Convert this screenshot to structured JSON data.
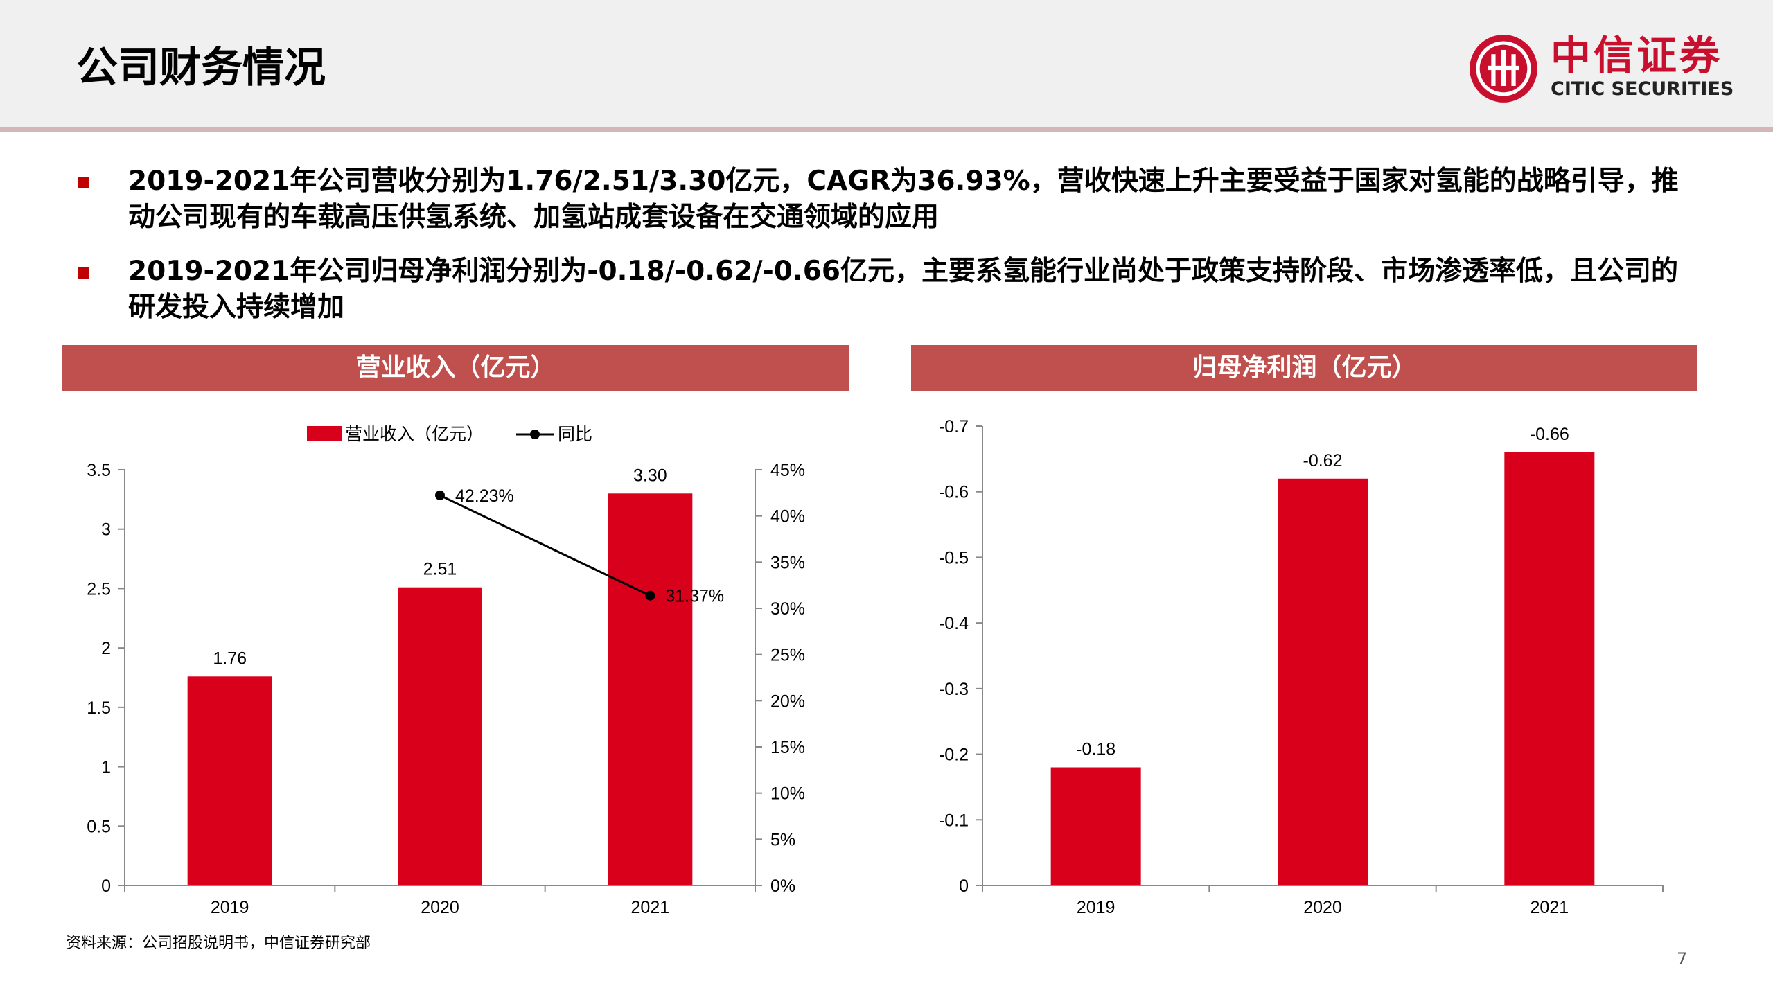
{
  "page": {
    "title": "公司财务情况",
    "page_number": "7",
    "source": "资料来源：公司招股说明书，中信证券研究部"
  },
  "logo": {
    "cn": "中信证券",
    "en": "CITIC SECURITIES",
    "color": "#c8102e"
  },
  "bullets": [
    "2019-2021年公司营收分别为1.76/2.51/3.30亿元，CAGR为36.93%，营收快速上升主要受益于国家对氢能的战略引导，推动公司现有的车载高压供氢系统、加氢站成套设备在交通领域的应用",
    "2019-2021年公司归母净利润分别为-0.18/-0.62/-0.66亿元，主要系氢能行业尚处于政策支持阶段、市场渗透率低，且公司的研发投入持续增加"
  ],
  "panels": {
    "left_title": "营业收入（亿元）",
    "right_title": "归母净利润（亿元）"
  },
  "chart_data": [
    {
      "type": "bar",
      "categories": [
        "2019",
        "2020",
        "2021"
      ],
      "series": [
        {
          "name": "营业收入（亿元）",
          "type": "bar",
          "axis": "left",
          "values": [
            1.76,
            2.51,
            3.3
          ],
          "labels": [
            "1.76",
            "2.51",
            "3.30"
          ],
          "color": "#d9001b"
        },
        {
          "name": "同比",
          "type": "line",
          "axis": "right",
          "values": [
            null,
            42.23,
            31.37
          ],
          "labels": [
            "",
            "42.23%",
            "31.37%"
          ],
          "color": "#000000"
        }
      ],
      "y_left": {
        "min": 0,
        "max": 3.5,
        "ticks": [
          "0",
          "0.5",
          "1",
          "1.5",
          "2",
          "2.5",
          "3",
          "3.5"
        ]
      },
      "y_right": {
        "min": 0,
        "max": 45,
        "ticks": [
          "0%",
          "5%",
          "10%",
          "15%",
          "20%",
          "25%",
          "30%",
          "35%",
          "40%",
          "45%"
        ]
      },
      "legend_position": "top-center",
      "grid": false
    },
    {
      "type": "bar",
      "categories": [
        "2019",
        "2020",
        "2021"
      ],
      "values": [
        -0.18,
        -0.62,
        -0.66
      ],
      "labels": [
        "-0.18",
        "-0.62",
        "-0.66"
      ],
      "color": "#d9001b",
      "y_axis": {
        "min": 0,
        "max": -0.7,
        "reversed": true,
        "ticks": [
          "0",
          "-0.1",
          "-0.2",
          "-0.3",
          "-0.4",
          "-0.5",
          "-0.6",
          "-0.7"
        ]
      },
      "grid": false
    }
  ]
}
